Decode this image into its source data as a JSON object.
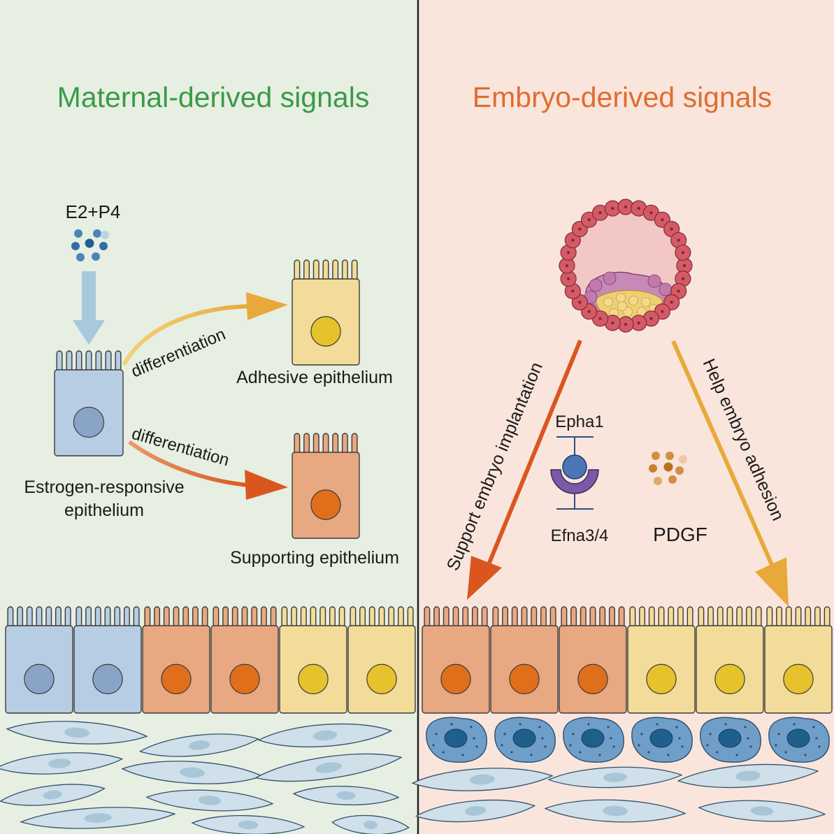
{
  "left_panel": {
    "title": "Maternal-derived signals",
    "hormone_label": "E2+P4",
    "arrow_upper_label": "differentiation",
    "arrow_lower_label": "differentiation",
    "cell_estrogen_label_line1": "Estrogen-responsive",
    "cell_estrogen_label_line2": "epithelium",
    "cell_adhesive_label": "Adhesive epithelium",
    "cell_supporting_label": "Supporting epithelium"
  },
  "right_panel": {
    "title": "Embryo-derived signals",
    "arrow_left_label": "Support embryo implantation",
    "arrow_right_label": "Help embryo adhesion",
    "receptor_top_label": "Epha1",
    "receptor_bottom_label": "Efna3/4",
    "growth_factor_label": "PDGF"
  },
  "colors": {
    "left_bg": "#e6efe2",
    "right_bg": "#fae5dc",
    "maternal_title": "#3b9a47",
    "embryo_title": "#df6d2e",
    "blue_cell": "#b7cde3",
    "blue_nucleus": "#8aa4c8",
    "orange_cell": "#e8a882",
    "orange_nucleus": "#e06f1c",
    "yellow_cell": "#f3dc99",
    "yellow_nucleus": "#e6c22d",
    "arrow_yellow": "#e9a93a",
    "arrow_orange": "#d9571f"
  },
  "epithelium_row_left": [
    "blue",
    "blue",
    "orange",
    "orange",
    "yellow",
    "yellow"
  ],
  "epithelium_row_right": [
    "orange",
    "orange",
    "orange",
    "yellow",
    "yellow",
    "yellow"
  ]
}
